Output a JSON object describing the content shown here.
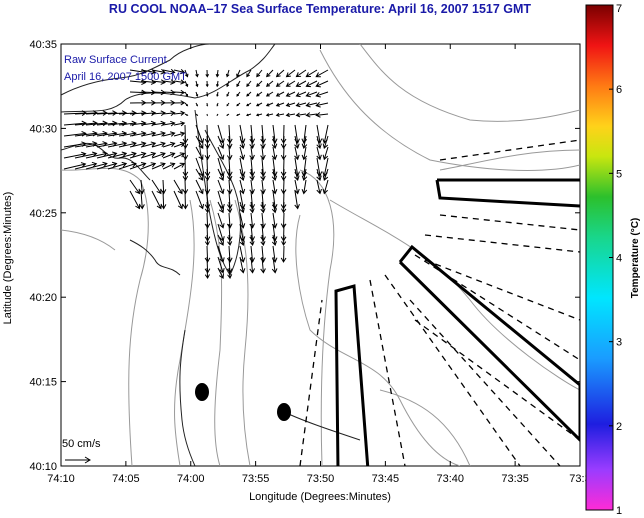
{
  "header": {
    "title": "RU COOL  NOAA–17  Sea Surface Temperature:  April 16, 2007 1517 GMT"
  },
  "map": {
    "inset_line1": "Raw Surface Current",
    "inset_line2": "April 16, 2007 1500 GMT",
    "scale_label": "50 cm/s",
    "x_axis_label": "Longitude (Degrees:Minutes)",
    "y_axis_label": "Latitude (Degrees:Minutes)",
    "x_ticks": [
      "74:10",
      "74:05",
      "74:00",
      "73:55",
      "73:50",
      "73:45",
      "73:40",
      "73:35",
      "73:3"
    ],
    "y_ticks": [
      "40:35",
      "40:30",
      "40:25",
      "40:20",
      "40:15",
      "40:10"
    ]
  },
  "colorbar": {
    "label": "Temperature (°C)",
    "ticks": [
      "7",
      "6",
      "5",
      "4",
      "3",
      "2",
      "1"
    ]
  }
}
